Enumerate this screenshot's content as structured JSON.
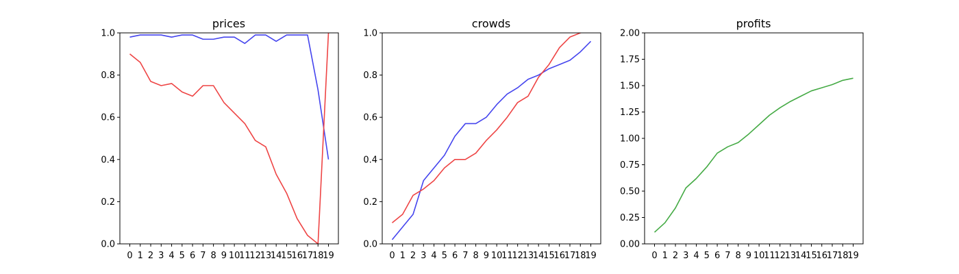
{
  "chart_data": [
    {
      "type": "line",
      "title": "prices",
      "xlabel": "",
      "ylabel": "",
      "x": [
        0,
        1,
        2,
        3,
        4,
        5,
        6,
        7,
        8,
        9,
        10,
        11,
        12,
        13,
        14,
        15,
        16,
        17,
        18,
        19
      ],
      "ylim": [
        0,
        1.0
      ],
      "yticks": [
        "0.0",
        "0.2",
        "0.4",
        "0.6",
        "0.8",
        "1.0"
      ],
      "grid": false,
      "series": [
        {
          "color": "#4444ee",
          "values": [
            0.98,
            0.99,
            0.99,
            0.99,
            0.98,
            0.99,
            0.99,
            0.97,
            0.97,
            0.98,
            0.98,
            0.95,
            0.99,
            0.99,
            0.96,
            0.99,
            0.99,
            0.99,
            0.73,
            0.4
          ]
        },
        {
          "color": "#ee4444",
          "values": [
            0.9,
            0.86,
            0.77,
            0.75,
            0.76,
            0.72,
            0.7,
            0.75,
            0.75,
            0.67,
            0.62,
            0.57,
            0.49,
            0.46,
            0.33,
            0.24,
            0.12,
            0.04,
            0.0,
            1.0
          ]
        }
      ]
    },
    {
      "type": "line",
      "title": "crowds",
      "xlabel": "",
      "ylabel": "",
      "x": [
        0,
        1,
        2,
        3,
        4,
        5,
        6,
        7,
        8,
        9,
        10,
        11,
        12,
        13,
        14,
        15,
        16,
        17,
        18,
        19
      ],
      "ylim": [
        0,
        1.0
      ],
      "yticks": [
        "0.0",
        "0.2",
        "0.4",
        "0.6",
        "0.8",
        "1.0"
      ],
      "grid": false,
      "series": [
        {
          "color": "#4444ee",
          "values": [
            0.02,
            0.08,
            0.14,
            0.3,
            0.36,
            0.42,
            0.51,
            0.57,
            0.57,
            0.6,
            0.66,
            0.71,
            0.74,
            0.78,
            0.8,
            0.83,
            0.85,
            0.87,
            0.91,
            0.96
          ]
        },
        {
          "color": "#ee4444",
          "values": [
            0.1,
            0.14,
            0.23,
            0.26,
            0.3,
            0.36,
            0.4,
            0.4,
            0.43,
            0.49,
            0.54,
            0.6,
            0.67,
            0.7,
            0.79,
            0.85,
            0.93,
            0.98,
            1.0,
            1.01
          ]
        }
      ]
    },
    {
      "type": "line",
      "title": "profits",
      "xlabel": "",
      "ylabel": "",
      "x": [
        0,
        1,
        2,
        3,
        4,
        5,
        6,
        7,
        8,
        9,
        10,
        11,
        12,
        13,
        14,
        15,
        16,
        17,
        18,
        19
      ],
      "ylim": [
        0,
        2.0
      ],
      "yticks": [
        "0.00",
        "0.25",
        "0.50",
        "0.75",
        "1.00",
        "1.25",
        "1.50",
        "1.75",
        "2.00"
      ],
      "grid": false,
      "series": [
        {
          "color": "#44aa44",
          "values": [
            0.11,
            0.2,
            0.34,
            0.53,
            0.62,
            0.73,
            0.86,
            0.92,
            0.96,
            1.04,
            1.13,
            1.22,
            1.29,
            1.35,
            1.4,
            1.45,
            1.48,
            1.51,
            1.55,
            1.57
          ]
        }
      ]
    }
  ]
}
